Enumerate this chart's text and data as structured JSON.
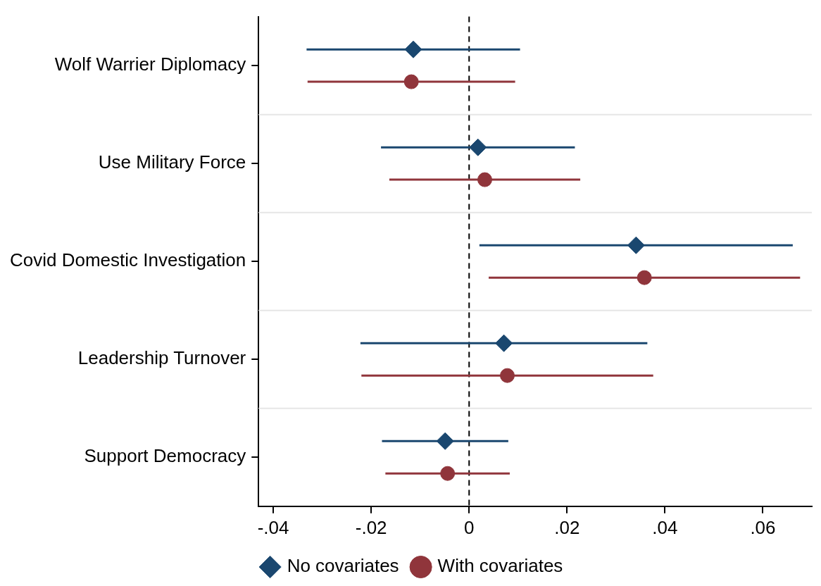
{
  "chart_data": {
    "type": "scatter",
    "orientation": "horizontal",
    "categories": [
      "Wolf Warrier Diplomacy",
      "Use Military Force",
      "Covid Domestic Investigation",
      "Leadership Turnover",
      "Support Democracy"
    ],
    "series": [
      {
        "name": "No covariates",
        "color": "#1a476f",
        "marker": "diamond",
        "values": [
          -0.0114,
          0.0018,
          0.0341,
          0.0071,
          -0.0049
        ],
        "errors": [
          0.0218,
          0.0198,
          0.032,
          0.0293,
          0.0129
        ]
      },
      {
        "name": "With covariates",
        "color": "#90353b",
        "marker": "circle",
        "values": [
          -0.0118,
          0.0032,
          0.0358,
          0.0078,
          -0.0044
        ],
        "errors": [
          0.0212,
          0.0195,
          0.0318,
          0.0298,
          0.0127
        ]
      }
    ],
    "xlim": [
      -0.043,
      0.07
    ],
    "xticks": [
      {
        "value": -0.04,
        "label": "-.04"
      },
      {
        "value": -0.02,
        "label": "-.02"
      },
      0,
      {
        "value": 0.02,
        "label": ".02"
      },
      {
        "value": 0.04,
        "label": ".04"
      },
      {
        "value": 0.06,
        "label": ".06"
      }
    ],
    "ref_lines": [
      {
        "axis": "x",
        "value": 0,
        "color": "#000000",
        "line_style": "dashed"
      }
    ],
    "grid": "y",
    "legend": "bottom"
  }
}
